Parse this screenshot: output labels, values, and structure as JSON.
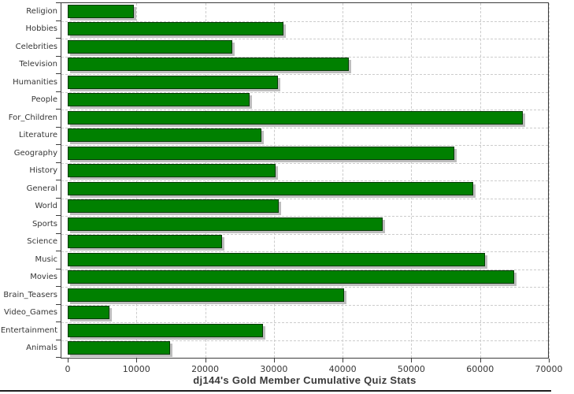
{
  "chart_data": {
    "type": "bar",
    "orientation": "horizontal",
    "title": "dj144's Gold Member Cumulative Quiz Stats",
    "categories": [
      "Religion",
      "Hobbies",
      "Celebrities",
      "Television",
      "Humanities",
      "People",
      "For_Children",
      "Literature",
      "Geography",
      "History",
      "General",
      "World",
      "Sports",
      "Science",
      "Music",
      "Movies",
      "Brain_Teasers",
      "Video_Games",
      "Entertainment",
      "Animals"
    ],
    "values": [
      9600,
      31400,
      24000,
      40900,
      30600,
      26500,
      66200,
      28200,
      56200,
      30200,
      59000,
      30700,
      45800,
      22400,
      60700,
      65000,
      40200,
      6100,
      28400,
      14900
    ],
    "xlabel": "",
    "ylabel": "",
    "xlim": [
      0,
      70000
    ],
    "xticks": [
      0,
      10000,
      20000,
      30000,
      40000,
      50000,
      60000,
      70000
    ],
    "grid": "dashed",
    "legend": "none",
    "colors": {
      "bar": "#008000",
      "bar_border": "#033903",
      "shadow": "#bdbdbd",
      "grid": "#cccccc",
      "axis": "#3c3c3c",
      "text": "#363636"
    }
  }
}
